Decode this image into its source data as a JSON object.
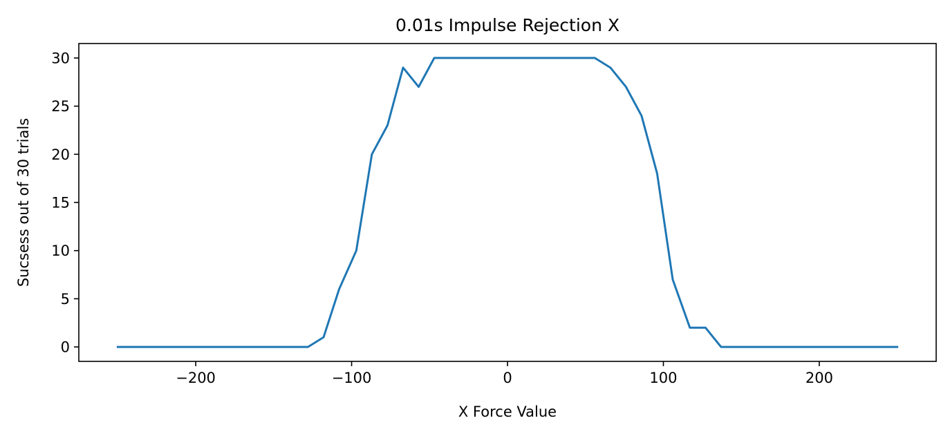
{
  "chart_data": {
    "type": "line",
    "title": "0.01s Impulse Rejection X",
    "xlabel": "X Force Value",
    "ylabel": "Sucsess out of 30 trials",
    "xlim": [
      -275,
      275
    ],
    "ylim": [
      -1.5,
      31.5
    ],
    "x_ticks": [
      -200,
      -100,
      0,
      100,
      200
    ],
    "x_tick_labels": [
      "−200",
      "−100",
      "0",
      "100",
      "200"
    ],
    "y_ticks": [
      0,
      5,
      10,
      15,
      20,
      25,
      30
    ],
    "y_tick_labels": [
      "0",
      "5",
      "10",
      "15",
      "20",
      "25",
      "30"
    ],
    "grid": false,
    "series": [
      {
        "color": "#1f77b4",
        "x": [
          -250,
          -240,
          -230,
          -220,
          -210,
          -200,
          -190,
          -180,
          -170,
          -160,
          -150,
          -140,
          -128,
          -118,
          -108,
          -97,
          -87,
          -77,
          -67,
          -57,
          -47,
          -37,
          -26,
          -16,
          -6,
          4,
          15,
          25,
          35,
          45,
          56,
          66,
          76,
          86,
          96,
          106,
          117,
          127,
          137,
          147,
          157,
          167,
          177,
          187,
          198,
          208,
          218,
          228,
          238,
          250
        ],
        "y": [
          0,
          0,
          0,
          0,
          0,
          0,
          0,
          0,
          0,
          0,
          0,
          0,
          0,
          1,
          6,
          10,
          20,
          23,
          29,
          27,
          30,
          30,
          30,
          30,
          30,
          30,
          30,
          30,
          30,
          30,
          30,
          29,
          27,
          24,
          18,
          7,
          2,
          2,
          0,
          0,
          0,
          0,
          0,
          0,
          0,
          0,
          0,
          0,
          0,
          0
        ]
      }
    ]
  }
}
